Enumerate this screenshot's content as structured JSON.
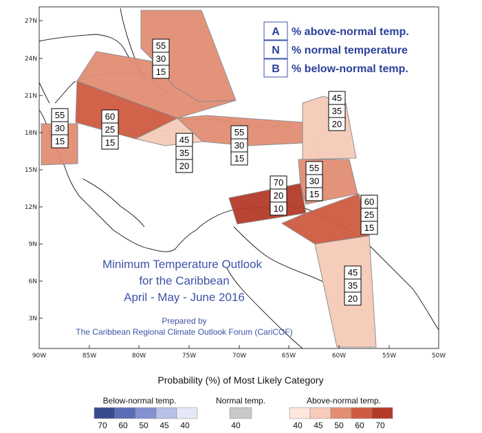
{
  "map": {
    "lat_labels": [
      "27N",
      "24N",
      "21N",
      "18N",
      "15N",
      "12N",
      "9N",
      "6N",
      "3N"
    ],
    "lon_labels": [
      "90W",
      "85W",
      "80W",
      "75W",
      "70W",
      "65W",
      "60W",
      "55W",
      "50W"
    ]
  },
  "legend": {
    "items": [
      {
        "letter": "A",
        "text": "% above-normal temp."
      },
      {
        "letter": "N",
        "text": "% normal temperature"
      },
      {
        "letter": "B",
        "text": "% below-normal temp."
      }
    ]
  },
  "title": {
    "line1": "Minimum Temperature Outlook",
    "line2": "for the Caribbean",
    "line3": "April - May - June 2016",
    "prepared_by": "Prepared by",
    "forum": "The Caribbean Regional Climate Outlook Forum (CariCOF)"
  },
  "regions": [
    {
      "id": "bahamas",
      "values": [
        "55",
        "30",
        "15"
      ],
      "fill": "#e38e74"
    },
    {
      "id": "belize",
      "values": [
        "55",
        "30",
        "15"
      ],
      "fill": "#e38e74"
    },
    {
      "id": "cuba-west",
      "values": [
        "60",
        "25",
        "15"
      ],
      "fill": "#cf5b42"
    },
    {
      "id": "jamaica",
      "values": [
        "45",
        "35",
        "20"
      ],
      "fill": "#f6cbb8"
    },
    {
      "id": "hispaniola-pr",
      "values": [
        "55",
        "30",
        "15"
      ],
      "fill": "#e38e74"
    },
    {
      "id": "leeward",
      "values": [
        "45",
        "35",
        "20"
      ],
      "fill": "#f6cbb8"
    },
    {
      "id": "windward",
      "values": [
        "55",
        "30",
        "15"
      ],
      "fill": "#e38e74"
    },
    {
      "id": "abc-islands",
      "values": [
        "70",
        "20",
        "10"
      ],
      "fill": "#b53a2a"
    },
    {
      "id": "trinidad",
      "values": [
        "60",
        "25",
        "15"
      ],
      "fill": "#cf5b42"
    },
    {
      "id": "guianas",
      "values": [
        "45",
        "35",
        "20"
      ],
      "fill": "#f6cbb8"
    }
  ],
  "colorbar": {
    "title": "Probability (%) of Most Likely Category",
    "below_label": "Below-normal temp.",
    "normal_label": "Normal temp.",
    "above_label": "Above-normal temp.",
    "below_colors": [
      "#3a4a8f",
      "#5a6eb8",
      "#8592cf",
      "#b7c0e6",
      "#e4e8f7"
    ],
    "below_numbers": [
      "70",
      "60",
      "50",
      "45",
      "40"
    ],
    "normal_color": "#c8c8c8",
    "normal_number": "40",
    "above_colors": [
      "#fde7dc",
      "#f6cbb8",
      "#e38e74",
      "#cf5b42",
      "#b53a2a"
    ],
    "above_numbers": [
      "40",
      "45",
      "50",
      "60",
      "70"
    ]
  }
}
